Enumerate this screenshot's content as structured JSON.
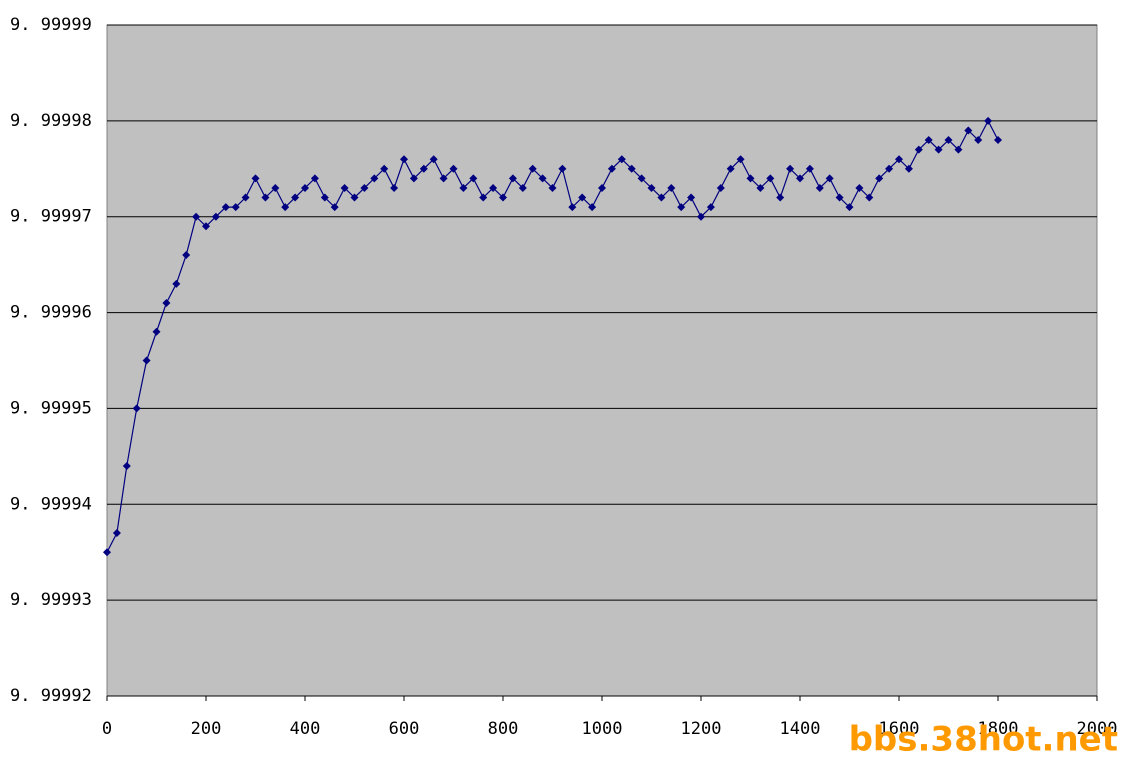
{
  "chart_data": {
    "type": "line",
    "watermark": "bbs.38hot.net",
    "x": [
      0,
      20,
      40,
      60,
      80,
      100,
      120,
      140,
      160,
      180,
      200,
      220,
      240,
      260,
      280,
      300,
      320,
      340,
      360,
      380,
      400,
      420,
      440,
      460,
      480,
      500,
      520,
      540,
      560,
      580,
      600,
      620,
      640,
      660,
      680,
      700,
      720,
      740,
      760,
      780,
      800,
      820,
      840,
      860,
      880,
      900,
      920,
      940,
      960,
      980,
      1000,
      1020,
      1040,
      1060,
      1080,
      1100,
      1120,
      1140,
      1160,
      1180,
      1200,
      1220,
      1240,
      1260,
      1280,
      1300,
      1320,
      1340,
      1360,
      1380,
      1400,
      1420,
      1440,
      1460,
      1480,
      1500,
      1520,
      1540,
      1560,
      1580,
      1600,
      1620,
      1640,
      1660,
      1680,
      1700,
      1720,
      1740,
      1760,
      1780,
      1800
    ],
    "series": [
      {
        "color": "#000080",
        "values": [
          9.999935,
          9.999937,
          9.999944,
          9.99995,
          9.999955,
          9.999958,
          9.999961,
          9.999963,
          9.999966,
          9.99997,
          9.999969,
          9.99997,
          9.999971,
          9.999971,
          9.999972,
          9.999974,
          9.999972,
          9.999973,
          9.999971,
          9.999972,
          9.999973,
          9.999974,
          9.999972,
          9.999971,
          9.999973,
          9.999972,
          9.999973,
          9.999974,
          9.999975,
          9.999973,
          9.999976,
          9.999974,
          9.999975,
          9.999976,
          9.999974,
          9.999975,
          9.999973,
          9.999974,
          9.999972,
          9.999973,
          9.999972,
          9.999974,
          9.999973,
          9.999975,
          9.999974,
          9.999973,
          9.999975,
          9.999971,
          9.999972,
          9.999971,
          9.999973,
          9.999975,
          9.999976,
          9.999975,
          9.999974,
          9.999973,
          9.999972,
          9.999973,
          9.999971,
          9.999972,
          9.99997,
          9.999971,
          9.999973,
          9.999975,
          9.999976,
          9.999974,
          9.999973,
          9.999974,
          9.999972,
          9.999975,
          9.999974,
          9.999975,
          9.999973,
          9.999974,
          9.999972,
          9.999971,
          9.999973,
          9.999972,
          9.999974,
          9.999975,
          9.999976,
          9.999975,
          9.999977,
          9.999978,
          9.999977,
          9.999978,
          9.999977,
          9.999979,
          9.999978,
          9.99998,
          9.999978
        ]
      }
    ],
    "xlim": [
      0,
      2000
    ],
    "xticks": [
      0,
      200,
      400,
      600,
      800,
      1000,
      1200,
      1400,
      1600,
      1800,
      2000
    ],
    "ylim": [
      9.99992,
      9.99999
    ],
    "yticks": [
      {
        "value": 9.99992,
        "label": "9. 99992"
      },
      {
        "value": 9.99993,
        "label": "9. 99993"
      },
      {
        "value": 9.99994,
        "label": "9. 99994"
      },
      {
        "value": 9.99995,
        "label": "9. 99995"
      },
      {
        "value": 9.99996,
        "label": "9. 99996"
      },
      {
        "value": 9.99997,
        "label": "9. 99997"
      },
      {
        "value": 9.99998,
        "label": "9. 99998"
      },
      {
        "value": 9.99999,
        "label": "9. 99999"
      }
    ],
    "grid": true,
    "background": "#c0c0c0"
  }
}
